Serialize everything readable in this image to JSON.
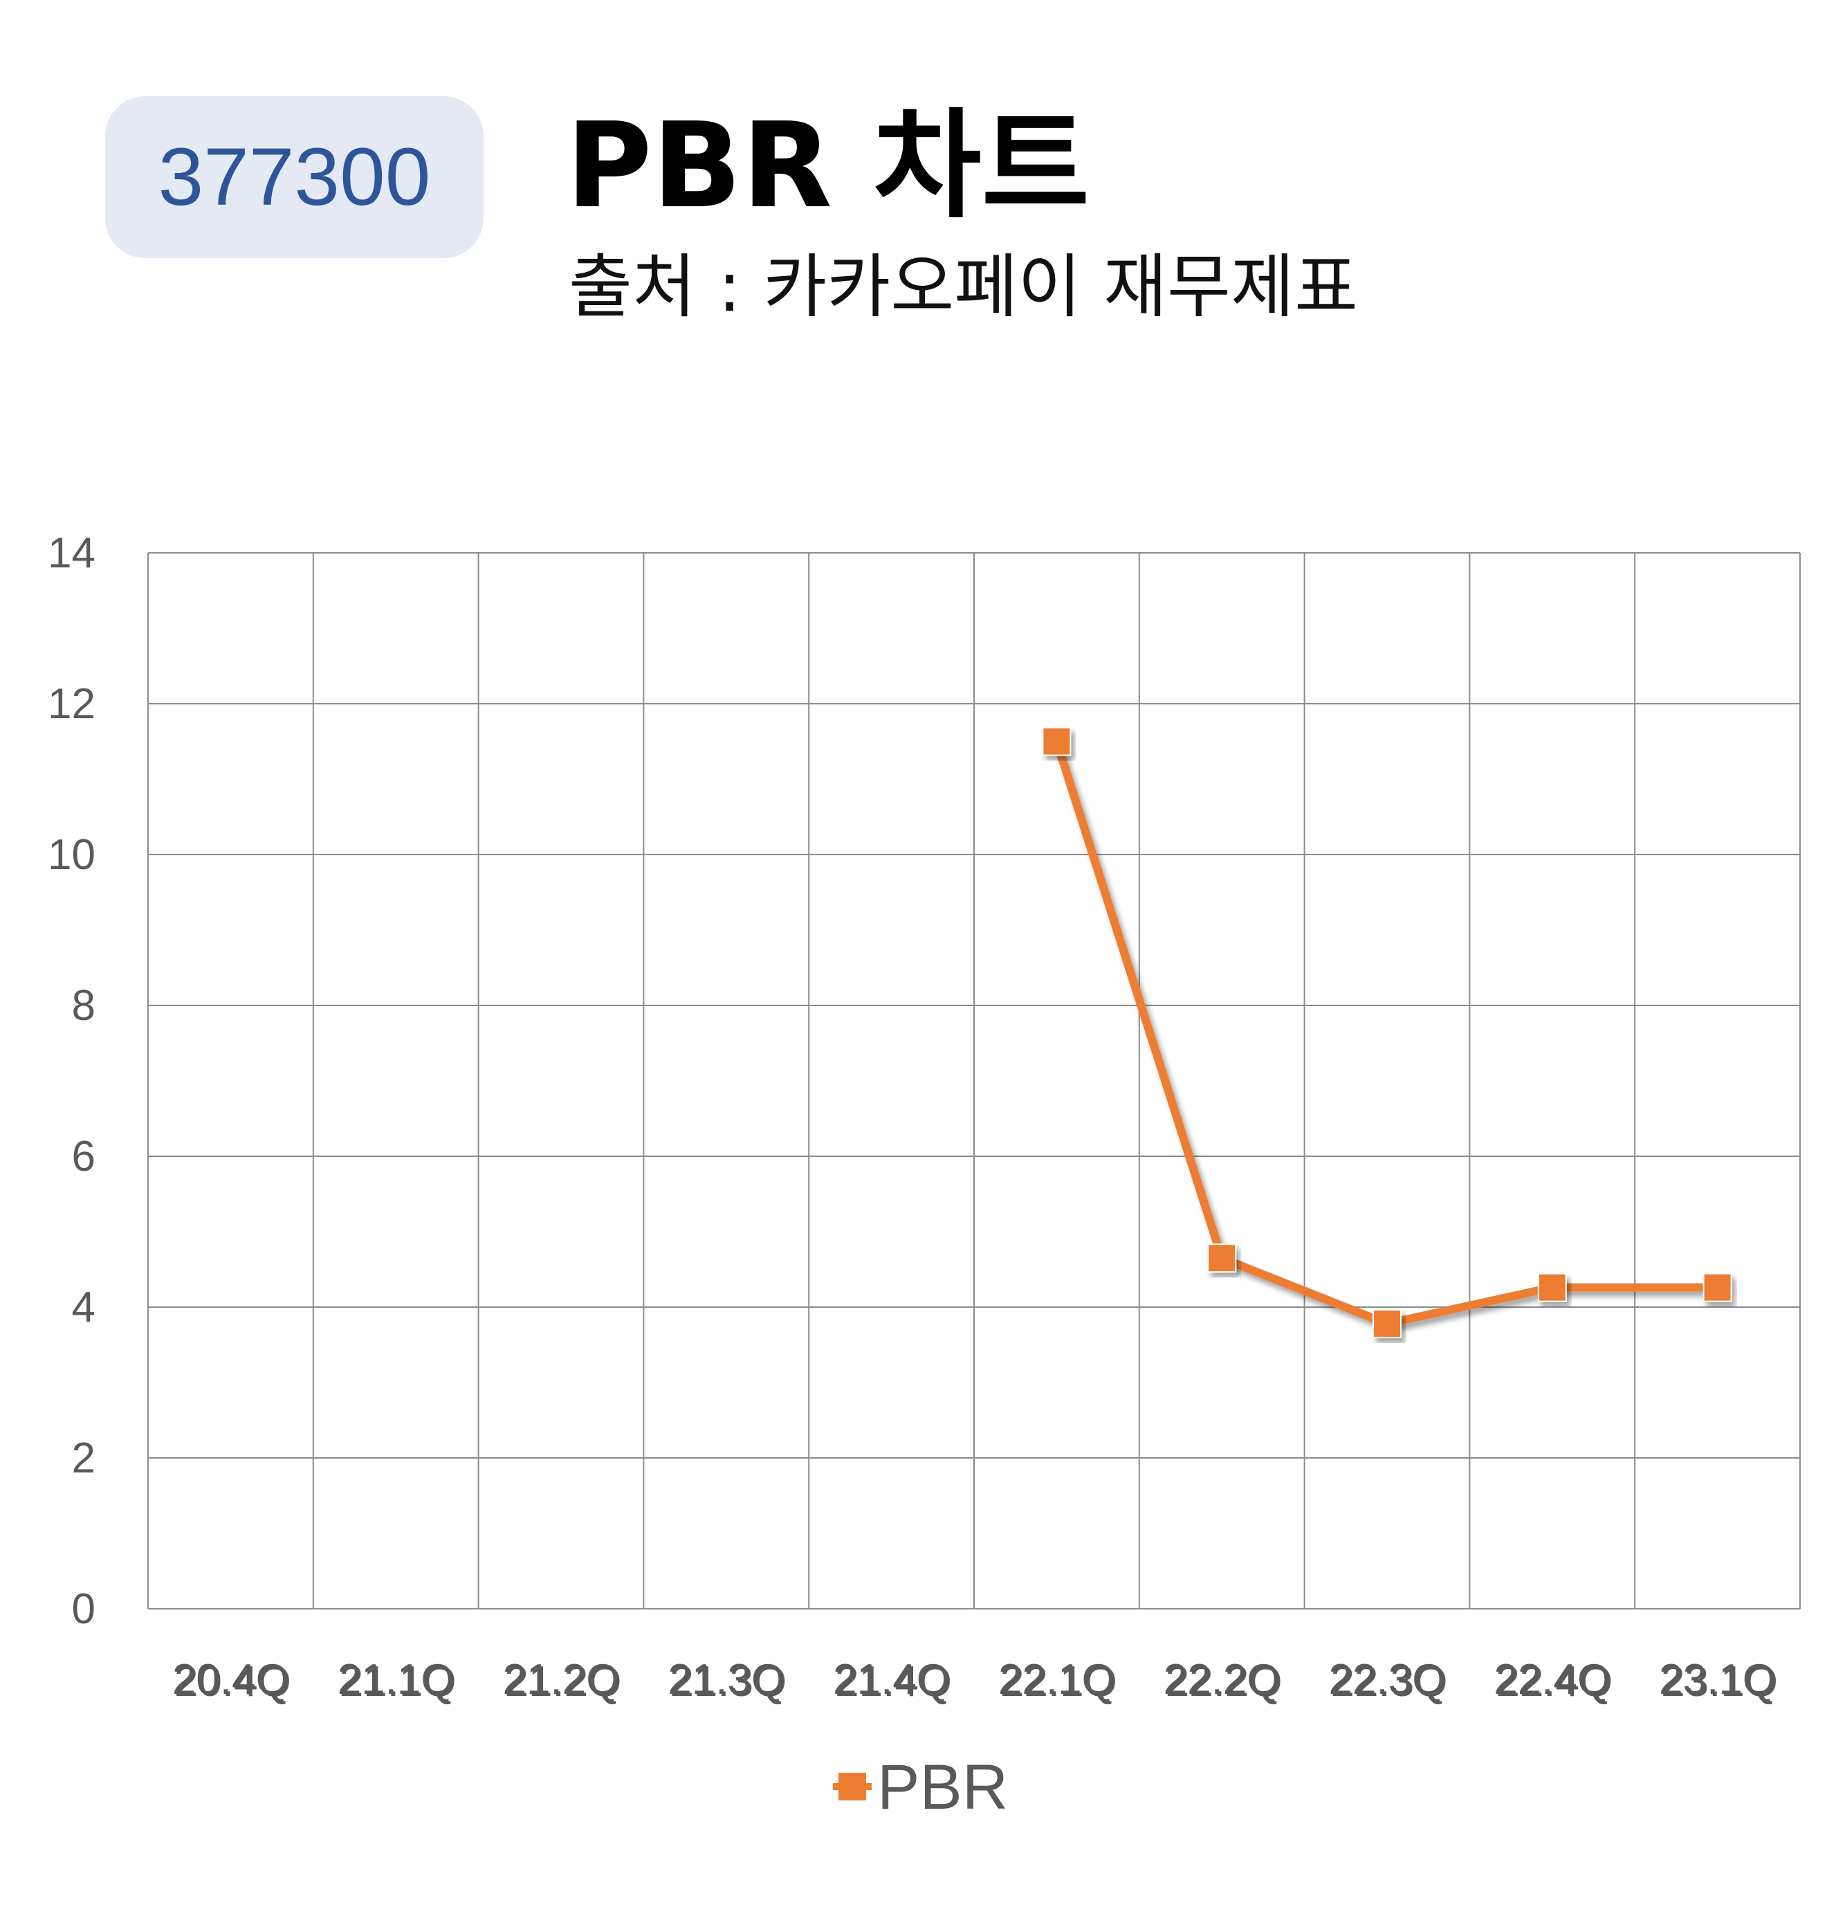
{
  "badge": {
    "code": "377300"
  },
  "header": {
    "title": "PBR 차트",
    "subtitle": "출처 : 카카오페이 재무제표"
  },
  "colors": {
    "series": "#ed7d31",
    "grid": "#8c8c8c",
    "badge_bg": "#e4e9f4",
    "badge_text": "#2e5599",
    "tick_text": "#595959"
  },
  "chart_data": {
    "type": "line",
    "categories": [
      "20.4Q",
      "21.1Q",
      "21.2Q",
      "21.3Q",
      "21.4Q",
      "22.1Q",
      "22.2Q",
      "22.3Q",
      "22.4Q",
      "23.1Q"
    ],
    "series": [
      {
        "name": "PBR",
        "values": [
          null,
          null,
          null,
          null,
          null,
          11.5,
          4.65,
          3.78,
          4.26,
          4.26
        ],
        "color": "#ed7d31",
        "marker": "square"
      }
    ],
    "ylim": [
      0,
      14
    ],
    "yticks": [
      0,
      2,
      4,
      6,
      8,
      10,
      12,
      14
    ],
    "grid": true,
    "legend": "bottom"
  }
}
